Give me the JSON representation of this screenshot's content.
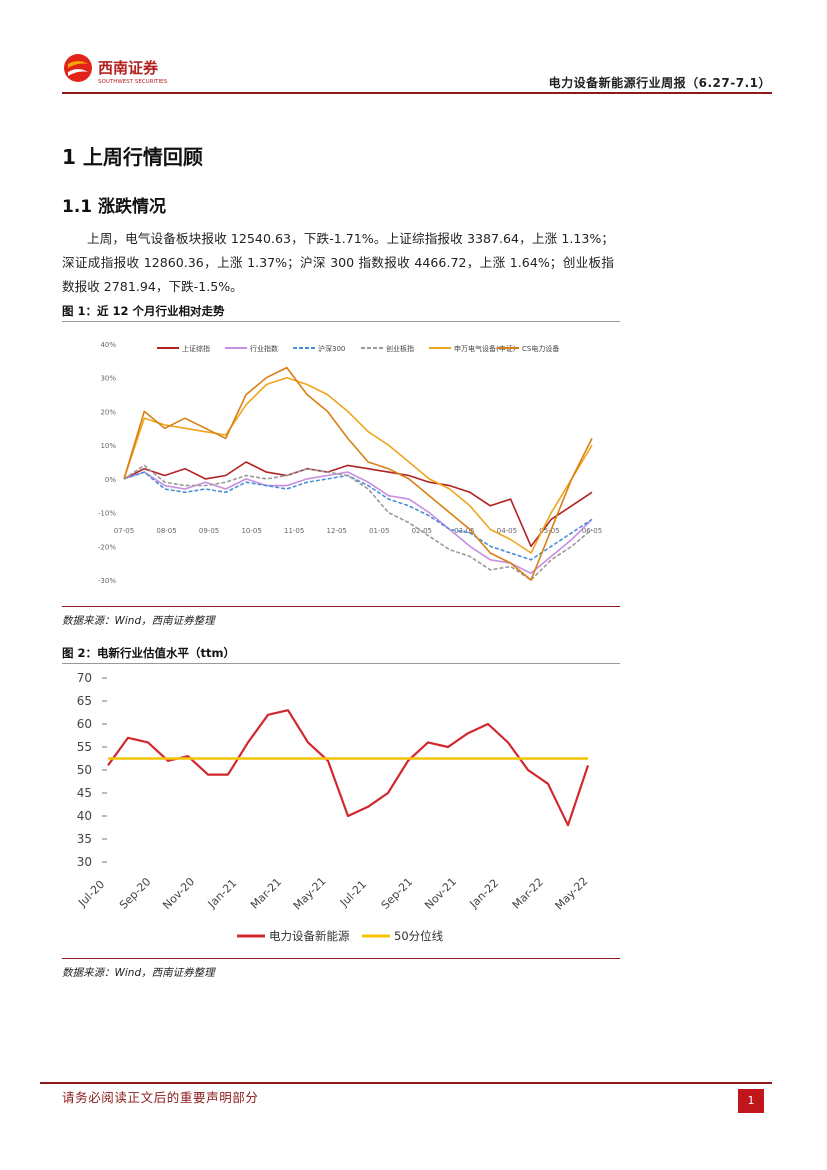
{
  "header": {
    "company_cn": "西南证券",
    "company_en": "SOUTHWEST SECURITIES",
    "report_title": "电力设备新能源行业周报（6.27-7.1）"
  },
  "section": {
    "h1": "1  上周行情回顾",
    "h2": "1.1  涨跌情况",
    "paragraph": "上周，电气设备板块报收 12540.63，下跌-1.71%。上证综指报收 3387.64，上涨 1.13%；深证成指报收 12860.36，上涨 1.37%；沪深 300 指数报收 4466.72，上涨 1.64%；创业板指数报收 2781.94，下跌-1.5%。"
  },
  "figure1": {
    "title": "图 1：近 12 个月行业相对走势",
    "source": "数据来源：Wind，西南证券整理"
  },
  "figure2": {
    "title": "图 2：电新行业估值水平（ttm）",
    "source": "数据来源：Wind，西南证券整理"
  },
  "footer": {
    "notice": "请务必阅读正文后的重要声明部分",
    "page": "1"
  },
  "colors": {
    "brand_red": "#8b1a1a",
    "accent_red": "#c0161c"
  },
  "chart_data": [
    {
      "type": "line",
      "title": "近 12 个月行业相对走势",
      "y_tick_labels": [
        "40%",
        "30%",
        "20%",
        "10%",
        "0%",
        "-10%",
        "-20%",
        "-30%"
      ],
      "ylim": [
        -30,
        40
      ],
      "x_tick_labels": [
        "07-05",
        "08-05",
        "09-05",
        "10-05",
        "11-05",
        "12-05",
        "01-05",
        "02-05",
        "03-05",
        "04-05",
        "05-05",
        "06-05"
      ],
      "x": [
        0,
        0.5,
        1,
        1.5,
        2,
        2.5,
        3,
        3.5,
        4,
        4.5,
        5,
        5.5,
        6,
        6.5,
        7,
        7.5,
        8,
        8.5,
        9,
        9.5,
        10,
        10.5,
        11,
        11.5
      ],
      "series": [
        {
          "name": "上证综指",
          "color": "#b22222",
          "style": "solid",
          "values": [
            0,
            3,
            1,
            3,
            0,
            1,
            5,
            2,
            1,
            3,
            2,
            4,
            3,
            2,
            1,
            -1,
            -2,
            -4,
            -8,
            -6,
            -20,
            -12,
            -8,
            -4
          ]
        },
        {
          "name": "行业指数",
          "color": "#c88ee0",
          "style": "solid",
          "values": [
            0,
            2,
            -2,
            -3,
            -1,
            -3,
            0,
            -2,
            -2,
            0,
            1,
            2,
            -1,
            -5,
            -6,
            -10,
            -15,
            -20,
            -24,
            -25,
            -28,
            -23,
            -18,
            -12
          ]
        },
        {
          "name": "沪深300",
          "color": "#4a90d9",
          "style": "dashed",
          "values": [
            0,
            2,
            -3,
            -4,
            -3,
            -4,
            -1,
            -2,
            -3,
            -1,
            0,
            1,
            -2,
            -6,
            -8,
            -11,
            -15,
            -16,
            -20,
            -22,
            -24,
            -20,
            -16,
            -12
          ]
        },
        {
          "name": "创业板指",
          "color": "#9a9a9a",
          "style": "dashed",
          "values": [
            0,
            4,
            -1,
            -2,
            -2,
            -1,
            1,
            0,
            1,
            3,
            2,
            1,
            -3,
            -10,
            -13,
            -17,
            -21,
            -23,
            -27,
            -26,
            -30,
            -24,
            -20,
            -15
          ]
        },
        {
          "name": "申万电气设备(中证)",
          "color": "#f0a51e",
          "style": "solid",
          "values": [
            0,
            18,
            16,
            15,
            14,
            13,
            22,
            28,
            30,
            28,
            25,
            20,
            14,
            10,
            5,
            0,
            -3,
            -8,
            -15,
            -18,
            -22,
            -10,
            0,
            10
          ]
        },
        {
          "name": "CS电力设备",
          "color": "#d98012",
          "style": "solid",
          "values": [
            0,
            20,
            15,
            18,
            15,
            12,
            25,
            30,
            33,
            25,
            20,
            12,
            5,
            3,
            0,
            -5,
            -10,
            -15,
            -22,
            -25,
            -30,
            -15,
            0,
            12
          ]
        }
      ]
    },
    {
      "type": "line",
      "title": "电新行业估值水平（ttm）",
      "y_tick_labels": [
        "70",
        "65",
        "60",
        "55",
        "50",
        "45",
        "40",
        "35",
        "30"
      ],
      "ylim": [
        30,
        70
      ],
      "x_tick_labels": [
        "Jul-20",
        "Sep-20",
        "Nov-20",
        "Jan-21",
        "Mar-21",
        "May-21",
        "Jul-21",
        "Sep-21",
        "Nov-21",
        "Jan-22",
        "Mar-22",
        "May-22"
      ],
      "x": [
        0,
        0.5,
        1,
        1.5,
        2,
        2.5,
        3,
        3.5,
        4,
        4.5,
        5,
        5.5,
        6,
        6.5,
        7,
        7.5,
        8,
        8.5,
        9,
        9.5,
        10,
        10.5,
        11,
        11.5,
        12
      ],
      "series": [
        {
          "name": "电力设备新能源",
          "color": "#d0282e",
          "style": "solid",
          "values": [
            51,
            57,
            56,
            52,
            53,
            49,
            49,
            56,
            62,
            63,
            56,
            52,
            40,
            42,
            45,
            52,
            56,
            55,
            58,
            60,
            56,
            50,
            47,
            38,
            51
          ]
        },
        {
          "name": "50分位线",
          "color": "#f5c400",
          "style": "solid",
          "values": [
            52.5,
            52.5,
            52.5,
            52.5,
            52.5,
            52.5,
            52.5,
            52.5,
            52.5,
            52.5,
            52.5,
            52.5,
            52.5,
            52.5,
            52.5,
            52.5,
            52.5,
            52.5,
            52.5,
            52.5,
            52.5,
            52.5,
            52.5,
            52.5,
            52.5
          ]
        }
      ]
    }
  ]
}
